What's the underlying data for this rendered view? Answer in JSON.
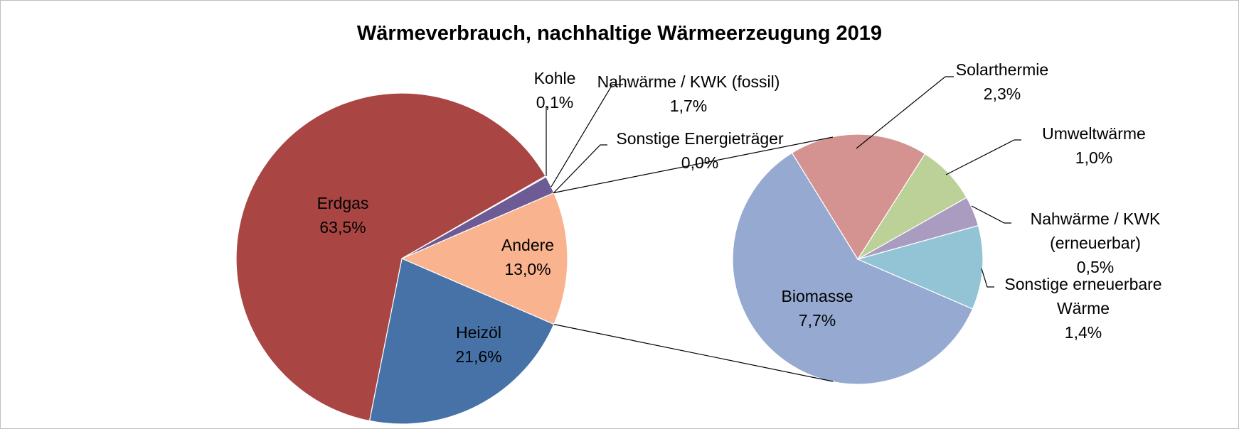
{
  "chart_data": {
    "type": "pie-of-pie",
    "title": "Wärmeverbrauch, nachhaltige Wärmeerzeugung 2019",
    "pies": [
      {
        "categories": [
          "Andere",
          "Heizöl",
          "Erdgas",
          "Kohle",
          "Nahwärme / KWK (fossil)",
          "Sonstige Energieträger"
        ],
        "values": [
          13.0,
          21.6,
          63.5,
          0.1,
          1.7,
          0.0
        ],
        "value_labels": [
          "13,0%",
          "21,6%",
          "63,5%",
          "0,1%",
          "1,7%",
          "0,0%"
        ],
        "colors": [
          "#f9b38e",
          "#4672a8",
          "#a94543",
          "#9bbb59",
          "#6d5b95",
          "#4bacc6"
        ]
      },
      {
        "categories": [
          "Biomasse",
          "Solarthermie",
          "Umweltwärme",
          "Nahwärme / KWK (erneuerbar)",
          "Sonstige erneuerbare Wärme"
        ],
        "values": [
          7.7,
          2.3,
          1.0,
          0.5,
          1.4
        ],
        "value_labels": [
          "7,7%",
          "2,3%",
          "1,0%",
          "0,5%",
          "1,4%"
        ],
        "colors": [
          "#95a9d1",
          "#d49291",
          "#bcd198",
          "#a99cc0",
          "#92c4d6"
        ]
      }
    ]
  }
}
